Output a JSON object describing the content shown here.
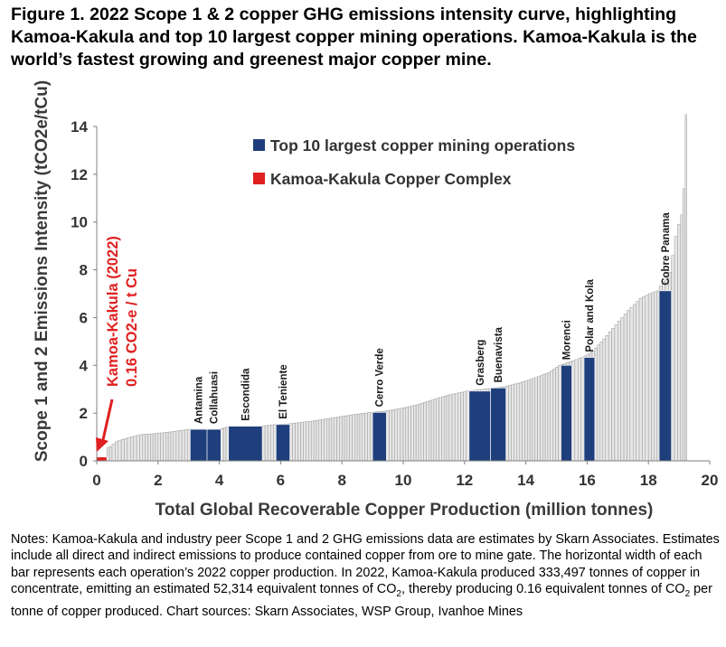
{
  "title": "Figure 1. 2022 Scope 1 & 2 copper GHG emissions intensity curve, highlighting Kamoa-Kakula and top 10 largest copper mining operations. Kamoa-Kakula is the world’s fastest growing and greenest major copper mine.",
  "notes": {
    "p1": "Notes: Kamoa-Kakula and industry peer Scope 1 and 2 GHG emissions data are estimates by Skarn Associates. Estimates include all direct and indirect emissions to produce contained copper from ore to mine gate. The horizontal width of each bar represents each operation’s 2022 copper production. In 2022, Kamoa-Kakula produced 333,497 tonnes of copper in concentrate, emitting an estimated 52,314 equivalent tonnes of CO",
    "sub1": "2",
    "p2": ", thereby producing 0.16 equivalent tonnes of CO",
    "sub2": "2",
    "p3": " per tonne of copper produced. Chart sources: Skarn Associates, WSP Group, Ivanhoe Mines"
  },
  "chart_data": {
    "type": "bar",
    "xlabel": "Total Global Recoverable Copper Production (million tonnes)",
    "ylabel": "Scope 1 and 2 Emissions Intensity (tCO2e/tCu)",
    "xlim": [
      0,
      20
    ],
    "ylim": [
      0,
      14
    ],
    "xticks": [
      "0",
      "2",
      "4",
      "6",
      "8",
      "10",
      "12",
      "14",
      "16",
      "18",
      "20"
    ],
    "yticks": [
      "0",
      "2",
      "4",
      "6",
      "8",
      "10",
      "12",
      "14"
    ],
    "legend": [
      {
        "label": "Top 10 largest copper mining operations",
        "color": "#1f3f7c"
      },
      {
        "label": "Kamoa-Kakula Copper Complex",
        "color": "#e02020"
      }
    ],
    "colors": {
      "top10": "#1f3f7c",
      "kamoa": "#e02020",
      "other": "#e6e6e6",
      "other_edge": "#9a9a9a",
      "annotation": "#e02020"
    },
    "annotation": {
      "line1": "Kamoa-Kakula (2022)",
      "line2": "0.16 CO2-e / t Cu"
    },
    "highlighted_bars": [
      {
        "name": "Kamoa-Kakula",
        "x0": 0.0,
        "x1": 0.33,
        "y": 0.16,
        "group": "kamoa"
      },
      {
        "name": "Antamina",
        "x0": 3.05,
        "x1": 3.6,
        "y": 1.32,
        "group": "top10"
      },
      {
        "name": "Collahuasi",
        "x0": 3.6,
        "x1": 4.05,
        "y": 1.32,
        "group": "top10"
      },
      {
        "name": "Escondida",
        "x0": 4.3,
        "x1": 5.4,
        "y": 1.45,
        "group": "top10"
      },
      {
        "name": "El Teniente",
        "x0": 5.85,
        "x1": 6.3,
        "y": 1.52,
        "group": "top10"
      },
      {
        "name": "Cerro Verde",
        "x0": 9.0,
        "x1": 9.45,
        "y": 2.03,
        "group": "top10"
      },
      {
        "name": "Grasberg",
        "x0": 12.15,
        "x1": 12.85,
        "y": 2.92,
        "group": "top10"
      },
      {
        "name": "Buenavista",
        "x0": 12.85,
        "x1": 13.35,
        "y": 3.05,
        "group": "top10"
      },
      {
        "name": "Morenci",
        "x0": 15.15,
        "x1": 15.5,
        "y": 4.0,
        "group": "top10"
      },
      {
        "name": "Polar and Kola",
        "x0": 15.9,
        "x1": 16.25,
        "y": 4.33,
        "group": "top10"
      },
      {
        "name": "Cobre Panama",
        "x0": 18.35,
        "x1": 18.75,
        "y": 7.12,
        "group": "top10"
      }
    ],
    "curve": {
      "x": [
        0.33,
        0.5,
        0.7,
        0.9,
        1.2,
        1.5,
        2.0,
        2.5,
        3.05,
        4.05,
        4.3,
        5.4,
        5.85,
        6.3,
        7.0,
        7.5,
        8.0,
        8.5,
        9.0,
        9.45,
        10.0,
        10.5,
        11.0,
        11.5,
        12.15,
        13.35,
        13.8,
        14.3,
        14.8,
        15.15,
        15.5,
        15.9,
        16.25,
        16.6,
        17.0,
        17.4,
        17.8,
        18.1,
        18.35,
        18.75,
        18.85,
        18.95,
        19.05,
        19.12,
        19.2,
        19.25
      ],
      "y": [
        0.5,
        0.6,
        0.8,
        0.9,
        1.0,
        1.1,
        1.15,
        1.22,
        1.32,
        1.32,
        1.42,
        1.45,
        1.52,
        1.55,
        1.65,
        1.75,
        1.85,
        1.95,
        2.03,
        2.08,
        2.2,
        2.35,
        2.55,
        2.75,
        2.92,
        3.1,
        3.25,
        3.45,
        3.7,
        4.0,
        4.15,
        4.33,
        4.6,
        5.1,
        5.7,
        6.3,
        6.8,
        7.0,
        7.12,
        7.9,
        8.6,
        9.4,
        9.9,
        10.3,
        11.4,
        15.0
      ]
    }
  }
}
